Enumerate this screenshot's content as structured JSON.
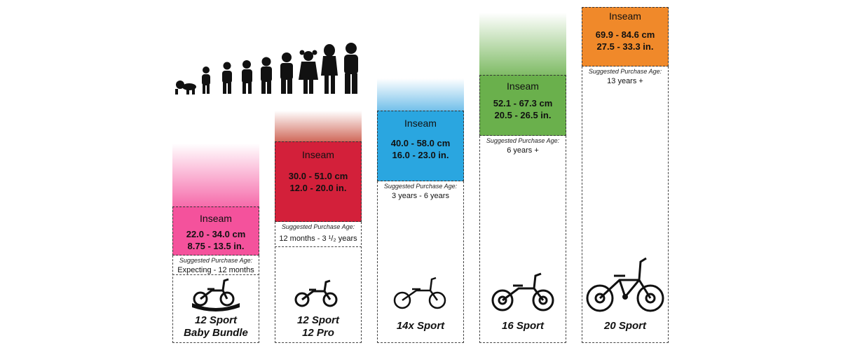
{
  "columns": [
    {
      "inseam_label": "Inseam",
      "cm": "22.0 - 34.0 cm",
      "in": "8.75 - 13.5 in.",
      "age_label": "Suggested Purchase Age:",
      "age": "Expecting - 12 months",
      "model_line1": "12 Sport",
      "model_line2": "Baby Bundle",
      "color": "#f4529c",
      "fade_color": "#f4529c"
    },
    {
      "inseam_label": "Inseam",
      "cm": "30.0 - 51.0 cm",
      "in": "12.0 - 20.0 in.",
      "age_label": "Suggested Purchase Age:",
      "age": "12 months - 3 ¹/₂ years",
      "model_line1": "12 Sport",
      "model_line2": "12 Pro",
      "color": "#d3203a",
      "fade_color": "#c8503f"
    },
    {
      "inseam_label": "Inseam",
      "cm": "40.0 - 58.0 cm",
      "in": "16.0 - 23.0 in.",
      "age_label": "Suggested Purchase Age:",
      "age": "3 years - 6 years",
      "model_line1": "14x Sport",
      "model_line2": "",
      "color": "#2aa6e0",
      "fade_color": "#5bb5e6"
    },
    {
      "inseam_label": "Inseam",
      "cm": "52.1 - 67.3 cm",
      "in": "20.5 - 26.5 in.",
      "age_label": "Suggested Purchase Age:",
      "age": "6 years +",
      "model_line1": "16 Sport",
      "model_line2": "",
      "color": "#6ab04c",
      "fade_color": "#6ab04c"
    },
    {
      "inseam_label": "Inseam",
      "cm": "69.9 - 84.6 cm",
      "in": "27.5 - 33.3 in.",
      "age_label": "Suggested Purchase Age:",
      "age": "13 years +",
      "model_line1": "20 Sport",
      "model_line2": "",
      "color": "#f0892a",
      "fade_color": "#f0892a"
    }
  ]
}
